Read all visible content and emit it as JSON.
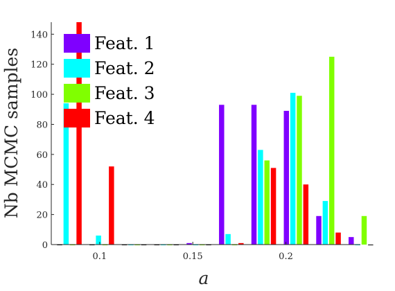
{
  "chart_data": {
    "type": "bar",
    "xlabel": "a",
    "ylabel": "Nb MCMC samples",
    "xlim": [
      0.074,
      0.24
    ],
    "ylim": [
      0,
      148
    ],
    "yticks": [
      0,
      20,
      40,
      60,
      80,
      100,
      120,
      140
    ],
    "xticks": [
      0.1,
      0.15,
      0.2
    ],
    "ytick_labels": [
      "0",
      "20",
      "40",
      "60",
      "80",
      "100",
      "120",
      "140"
    ],
    "xtick_labels": [
      "0.1",
      "0.15",
      "0.2"
    ],
    "bin_width": 0.0174,
    "group_centers": [
      0.0837,
      0.1011,
      0.1185,
      0.1359,
      0.1533,
      0.1707,
      0.1881,
      0.2055,
      0.2229,
      0.2403
    ],
    "legend_position": "top-left",
    "series": [
      {
        "name": "Feat. 1",
        "color": "#7f00ff",
        "values": [
          0,
          0,
          0,
          0,
          1,
          93,
          93,
          89,
          19,
          5
        ]
      },
      {
        "name": "Feat. 2",
        "color": "#00ffff",
        "values": [
          94,
          6,
          0,
          0,
          0,
          7,
          63,
          101,
          29,
          0
        ]
      },
      {
        "name": "Feat. 3",
        "color": "#80ff00",
        "values": [
          0,
          0,
          0,
          0,
          0,
          0,
          56,
          99,
          125,
          19
        ]
      },
      {
        "name": "Feat. 4",
        "color": "#ff0000",
        "values": [
          148,
          52,
          0,
          0,
          0,
          1,
          51,
          40,
          8,
          0
        ]
      }
    ]
  }
}
